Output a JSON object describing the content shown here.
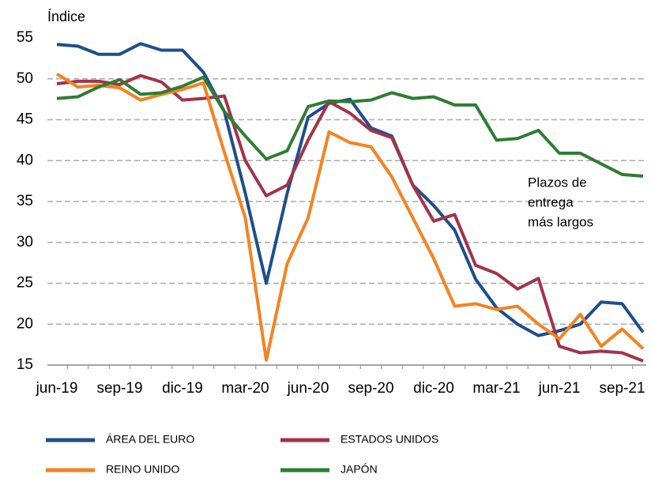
{
  "chart_data": {
    "type": "line",
    "y_label": "Índice",
    "categories": [
      "jun-19",
      null,
      null,
      "sep-19",
      null,
      null,
      "dic-19",
      null,
      null,
      "mar-20",
      null,
      null,
      "jun-20",
      null,
      null,
      "sep-20",
      null,
      null,
      "dic-20",
      null,
      null,
      "mar-21",
      null,
      null,
      "jun-21",
      null,
      null,
      "sep-21",
      null
    ],
    "series": [
      {
        "name": "ÁREA DEL EURO",
        "color": "#1f4e8c",
        "values": [
          54.2,
          54.0,
          53.0,
          53.0,
          54.3,
          53.5,
          53.5,
          50.8,
          46,
          36,
          25,
          36,
          45.3,
          47,
          47.5,
          44,
          43,
          37,
          34.5,
          31.5,
          25.5,
          22,
          20,
          18.6,
          19.2,
          20,
          22.7,
          22.5,
          19
        ]
      },
      {
        "name": "ESTADOS UNIDOS",
        "color": "#a3334a",
        "values": [
          49.4,
          49.7,
          49.7,
          49.3,
          50.4,
          49.6,
          47.4,
          47.6,
          47.9,
          40,
          35.7,
          37,
          42.5,
          47.2,
          45.8,
          43.7,
          42.8,
          37,
          32.6,
          33.4,
          27.2,
          26.2,
          24.3,
          25.6,
          17.3,
          16.5,
          16.7,
          16.5,
          15.5
        ]
      },
      {
        "name": "REINO UNIDO",
        "color": "#f58220",
        "values": [
          50.6,
          49,
          49.2,
          48.9,
          47.4,
          48.1,
          48.7,
          49.5,
          41,
          33,
          15.6,
          27.4,
          33,
          43.5,
          42.2,
          41.7,
          38,
          33,
          28,
          22.2,
          22.5,
          21.8,
          22.2,
          20,
          18.2,
          21.2,
          17.3,
          19.4,
          17
        ]
      },
      {
        "name": "JAPÓN",
        "color": "#2e7d32",
        "values": [
          47.6,
          47.8,
          49,
          49.9,
          48.1,
          48.3,
          49.1,
          50.2,
          46,
          43,
          40.2,
          41.2,
          46.6,
          47.3,
          47.2,
          47.4,
          48.3,
          47.6,
          47.8,
          46.8,
          46.8,
          42.5,
          42.7,
          43.7,
          40.9,
          40.9,
          39.6,
          38.3,
          38.1
        ]
      }
    ],
    "annotation": [
      "Plazos de",
      "entrega",
      "más largos"
    ],
    "ylim": [
      15,
      55
    ],
    "yticks": [
      15,
      20,
      25,
      30,
      35,
      40,
      45,
      50,
      55
    ],
    "grid": true
  }
}
